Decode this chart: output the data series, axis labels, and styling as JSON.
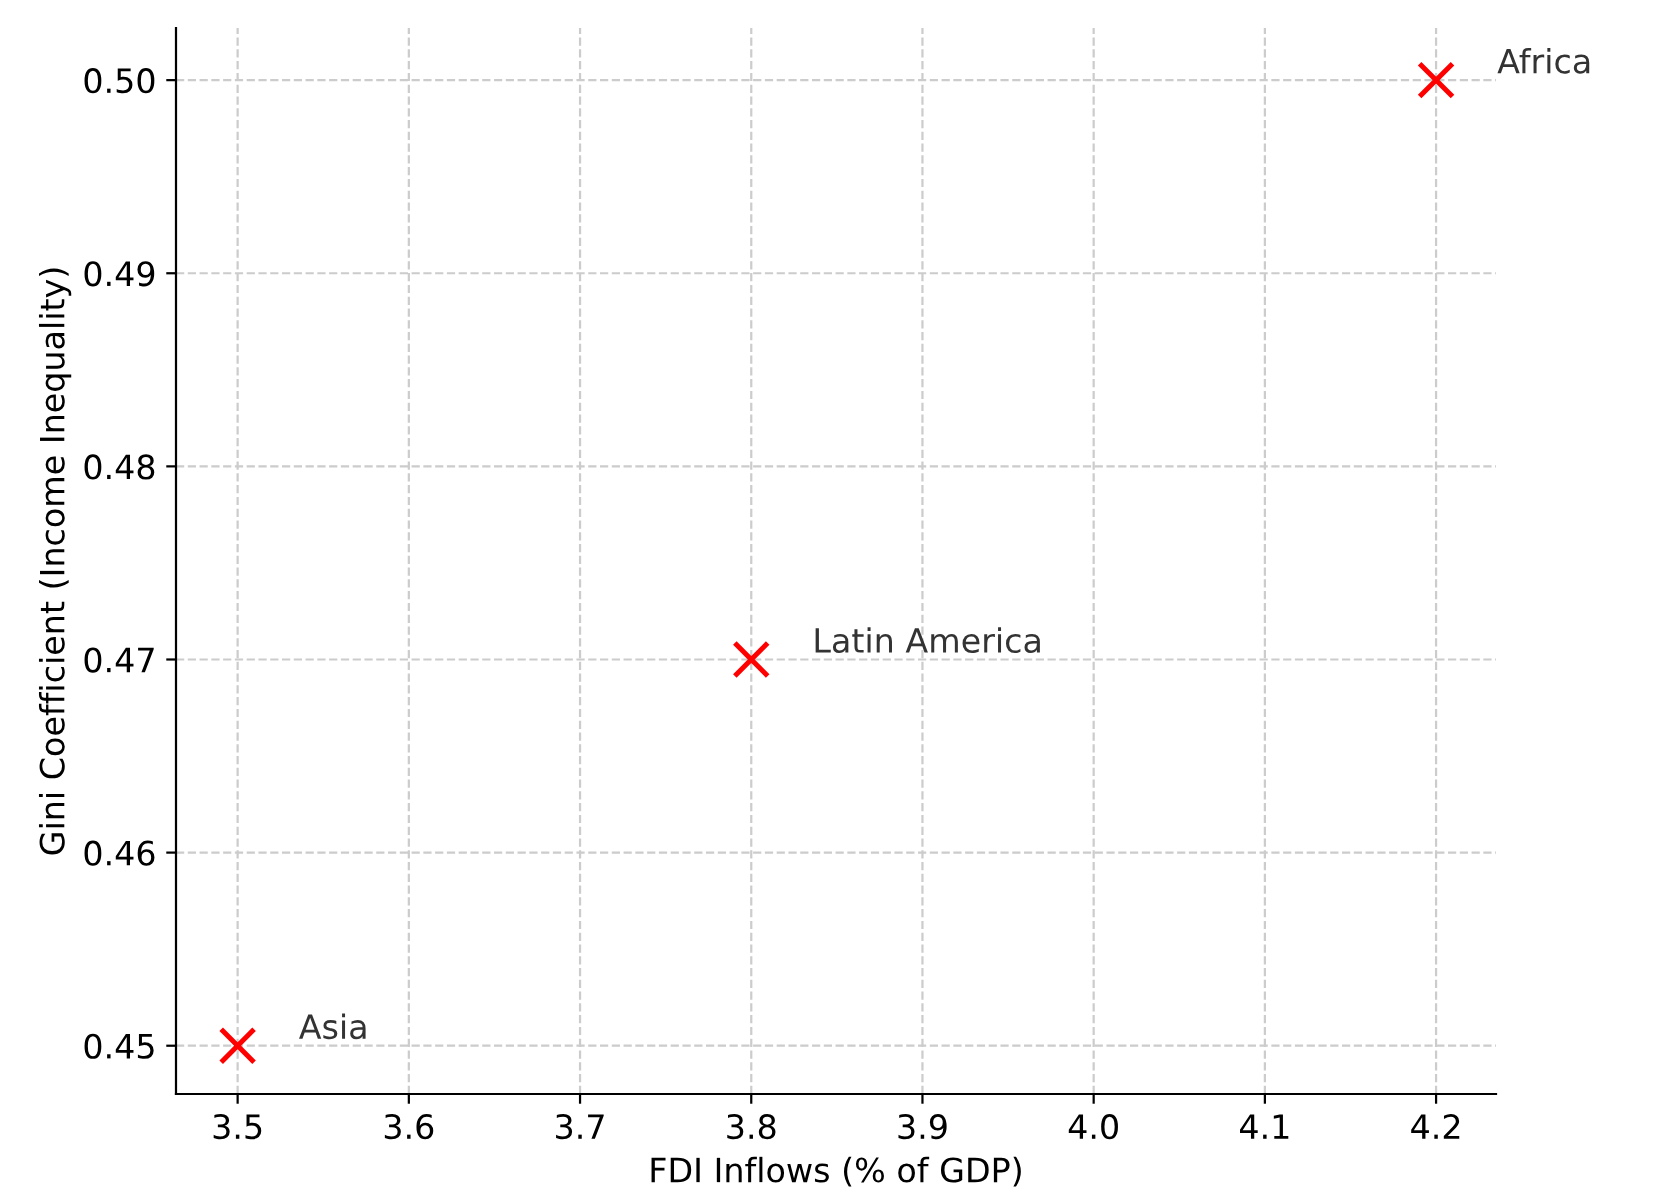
{
  "chart_data": {
    "type": "scatter",
    "xlabel": "FDI Inflows (% of GDP)",
    "ylabel": "Gini Coefficient (Income Inequality)",
    "series": [
      {
        "color": "#ff0000",
        "x": [
          3.5,
          3.8,
          4.2
        ],
        "values": [
          0.45,
          0.47,
          0.5
        ]
      }
    ],
    "marker": "cross",
    "annotations": [
      {
        "text": "Asia",
        "x": 3.5,
        "y": 0.45
      },
      {
        "text": "Latin America",
        "x": 3.8,
        "y": 0.47
      },
      {
        "text": "Africa",
        "x": 4.2,
        "y": 0.5
      }
    ],
    "xlim": [
      3.464,
      4.235
    ],
    "ylim": [
      0.4475,
      0.5027
    ],
    "xticks": [
      {
        "value": 3.5,
        "label": "3.5"
      },
      {
        "value": 3.6,
        "label": "3.6"
      },
      {
        "value": 3.7,
        "label": "3.7"
      },
      {
        "value": 3.8,
        "label": "3.8"
      },
      {
        "value": 3.9,
        "label": "3.9"
      },
      {
        "value": 4.0,
        "label": "4.0"
      },
      {
        "value": 4.1,
        "label": "4.1"
      },
      {
        "value": 4.2,
        "label": "4.2"
      }
    ],
    "yticks": [
      {
        "value": 0.45,
        "label": "0.45"
      },
      {
        "value": 0.46,
        "label": "0.46"
      },
      {
        "value": 0.47,
        "label": "0.47"
      },
      {
        "value": 0.48,
        "label": "0.48"
      },
      {
        "value": 0.49,
        "label": "0.49"
      },
      {
        "value": 0.5,
        "label": "0.50"
      }
    ],
    "grid": true
  }
}
